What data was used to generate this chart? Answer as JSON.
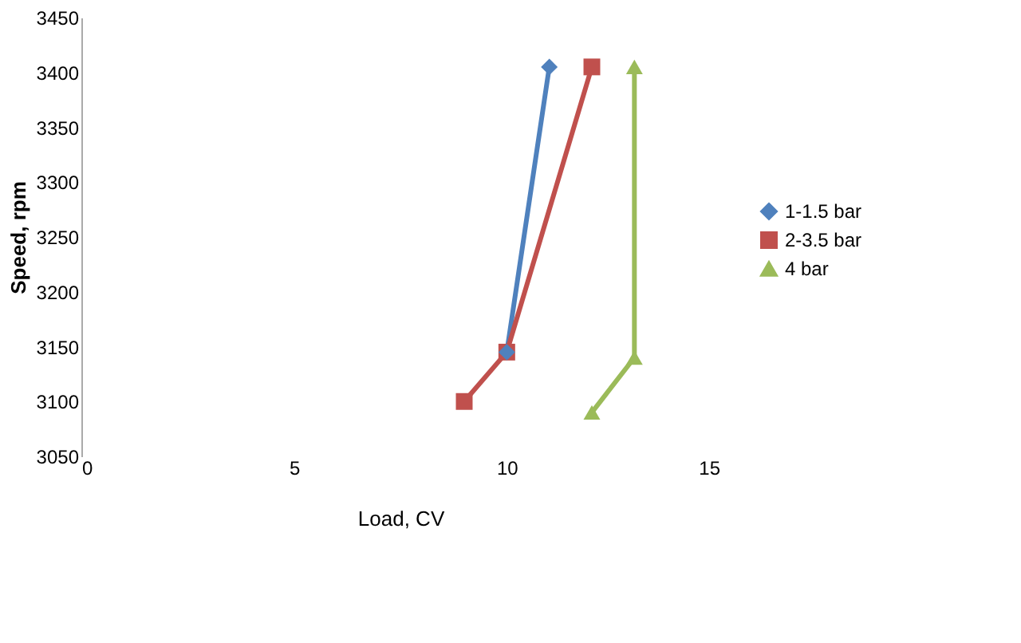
{
  "chart_data": {
    "type": "line",
    "xlabel": "Load, CV",
    "ylabel": "Speed, rpm",
    "xlim": [
      0,
      15
    ],
    "xticks": [
      0,
      5,
      10,
      15
    ],
    "ylim": [
      3050,
      3450
    ],
    "yticks": [
      3050,
      3100,
      3150,
      3200,
      3250,
      3300,
      3350,
      3400,
      3450
    ],
    "grid": false,
    "legend": "right",
    "series": [
      {
        "name": "1-1.5 bar",
        "color": "#4f81bd",
        "marker": "diamond",
        "x": [
          10,
          11
        ],
        "values": [
          3145,
          3405
        ]
      },
      {
        "name": "2-3.5 bar",
        "color": "#c0504d",
        "marker": "square",
        "x": [
          9,
          10,
          12
        ],
        "values": [
          3100,
          3145,
          3405
        ]
      },
      {
        "name": "4 bar",
        "color": "#9bbb59",
        "marker": "triangle",
        "x": [
          12,
          13,
          13
        ],
        "values": [
          3090,
          3140,
          3405
        ]
      }
    ]
  }
}
